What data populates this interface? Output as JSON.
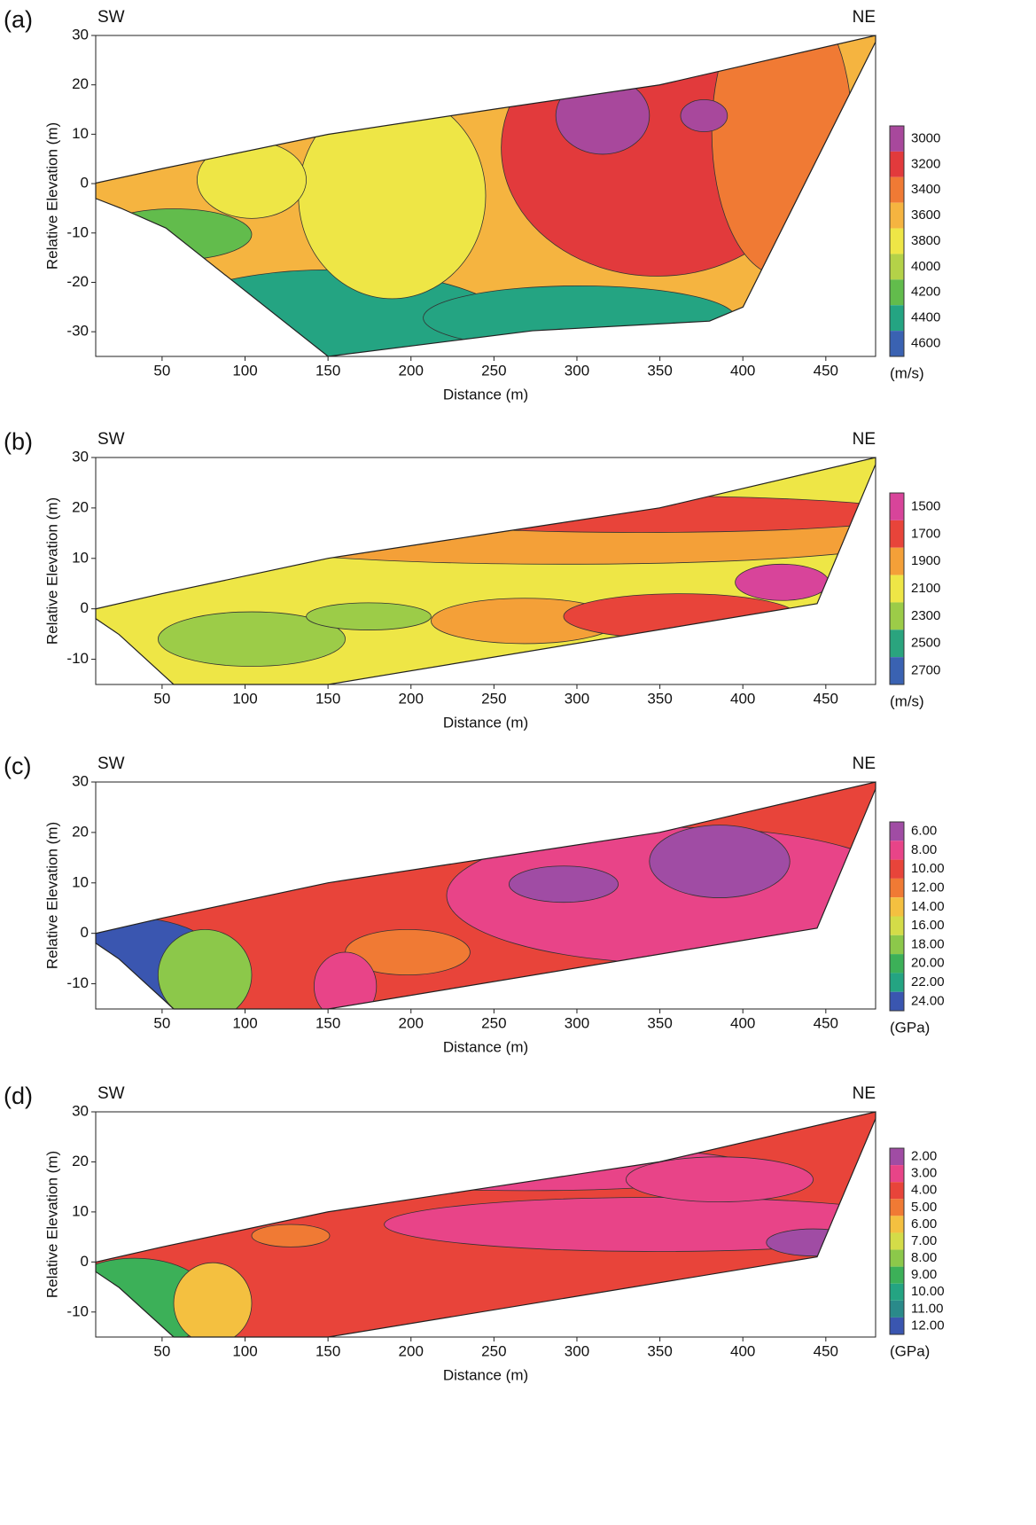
{
  "chart_data": [
    {
      "type": "contour",
      "panel_label": "(a)",
      "left_label": "SW",
      "right_label": "NE",
      "xlabel": "Distance (m)",
      "ylabel": "Relative Elevation (m)",
      "xlim": [
        10,
        480
      ],
      "ylim": [
        -35,
        30
      ],
      "xticks": [
        50,
        100,
        150,
        200,
        250,
        300,
        350,
        400,
        450
      ],
      "yticks": [
        -30,
        -20,
        -10,
        0,
        10,
        20,
        30
      ],
      "colorbar": {
        "unit": "(m/s)",
        "ticks": [
          3000,
          3200,
          3400,
          3600,
          3800,
          4000,
          4200,
          4400,
          4600
        ],
        "colors": [
          "#a8489c",
          "#e23a3c",
          "#f07a34",
          "#f5b440",
          "#eee646",
          "#b4d248",
          "#62bc4c",
          "#24a482",
          "#3a62b2"
        ]
      }
    },
    {
      "type": "contour",
      "panel_label": "(b)",
      "left_label": "SW",
      "right_label": "NE",
      "xlabel": "Distance (m)",
      "ylabel": "Relative Elevation (m)",
      "xlim": [
        10,
        480
      ],
      "ylim": [
        -15,
        30
      ],
      "xticks": [
        50,
        100,
        150,
        200,
        250,
        300,
        350,
        400,
        450
      ],
      "yticks": [
        -10,
        0,
        10,
        20,
        30
      ],
      "colorbar": {
        "unit": "(m/s)",
        "ticks": [
          1500,
          1700,
          1900,
          2100,
          2300,
          2500,
          2700
        ],
        "colors": [
          "#d8449a",
          "#e8443a",
          "#f4a038",
          "#eee646",
          "#9ccc48",
          "#2aa47e",
          "#3a62b2"
        ]
      }
    },
    {
      "type": "contour",
      "panel_label": "(c)",
      "left_label": "SW",
      "right_label": "NE",
      "xlabel": "Distance (m)",
      "ylabel": "Relative Elevation (m)",
      "xlim": [
        10,
        480
      ],
      "ylim": [
        -15,
        30
      ],
      "xticks": [
        50,
        100,
        150,
        200,
        250,
        300,
        350,
        400,
        450
      ],
      "yticks": [
        -10,
        0,
        10,
        20,
        30
      ],
      "colorbar": {
        "unit": "(GPa)",
        "ticks": [
          {
            "value": 6,
            "label": "6.00"
          },
          {
            "value": 8,
            "label": "8.00"
          },
          {
            "value": 10,
            "label": "10.00"
          },
          {
            "value": 12,
            "label": "12.00"
          },
          {
            "value": 14,
            "label": "14.00"
          },
          {
            "value": 16,
            "label": "16.00"
          },
          {
            "value": 18,
            "label": "18.00"
          },
          {
            "value": 20,
            "label": "20.00"
          },
          {
            "value": 22,
            "label": "22.00"
          },
          {
            "value": 24,
            "label": "24.00"
          }
        ],
        "colors": [
          "#a04ca4",
          "#e84488",
          "#e8443a",
          "#f07a34",
          "#f4c040",
          "#d4dc48",
          "#8cc84a",
          "#3cb058",
          "#24a482",
          "#3a56b0"
        ]
      }
    },
    {
      "type": "contour",
      "panel_label": "(d)",
      "left_label": "SW",
      "right_label": "NE",
      "xlabel": "Distance (m)",
      "ylabel": "Relative Elevation (m)",
      "xlim": [
        10,
        480
      ],
      "ylim": [
        -15,
        30
      ],
      "xticks": [
        50,
        100,
        150,
        200,
        250,
        300,
        350,
        400,
        450
      ],
      "yticks": [
        -10,
        0,
        10,
        20,
        30
      ],
      "colorbar": {
        "unit": "(GPa)",
        "ticks": [
          {
            "value": 2,
            "label": "2.00"
          },
          {
            "value": 3,
            "label": "3.00"
          },
          {
            "value": 4,
            "label": "4.00"
          },
          {
            "value": 5,
            "label": "5.00"
          },
          {
            "value": 6,
            "label": "6.00"
          },
          {
            "value": 7,
            "label": "7.00"
          },
          {
            "value": 8,
            "label": "8.00"
          },
          {
            "value": 9,
            "label": "9.00"
          },
          {
            "value": 10,
            "label": "10.00"
          },
          {
            "value": 11,
            "label": "11.00"
          },
          {
            "value": 12,
            "label": "12.00"
          }
        ],
        "colors": [
          "#a04ca4",
          "#e84488",
          "#e8443a",
          "#f07a34",
          "#f4c040",
          "#d4dc48",
          "#8cc84a",
          "#3cb058",
          "#24a482",
          "#2a8a8a",
          "#3a56b0"
        ]
      }
    }
  ]
}
